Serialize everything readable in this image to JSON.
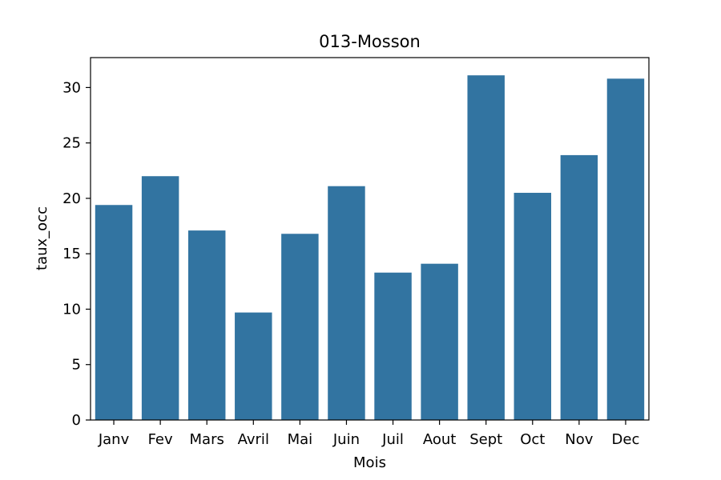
{
  "chart_data": {
    "type": "bar",
    "title": "013-Mosson",
    "xlabel": "Mois",
    "ylabel": "taux_occ",
    "categories": [
      "Janv",
      "Fev",
      "Mars",
      "Avril",
      "Mai",
      "Juin",
      "Juil",
      "Aout",
      "Sept",
      "Oct",
      "Nov",
      "Dec"
    ],
    "values": [
      19.4,
      22.0,
      17.1,
      9.7,
      16.8,
      21.1,
      13.3,
      14.1,
      31.1,
      20.5,
      23.9,
      30.8
    ],
    "ylim": [
      0,
      32.7
    ],
    "yticks": [
      0,
      5,
      10,
      15,
      20,
      25,
      30
    ],
    "bar_color": "#3274a1",
    "grid": false,
    "legend": "none"
  }
}
